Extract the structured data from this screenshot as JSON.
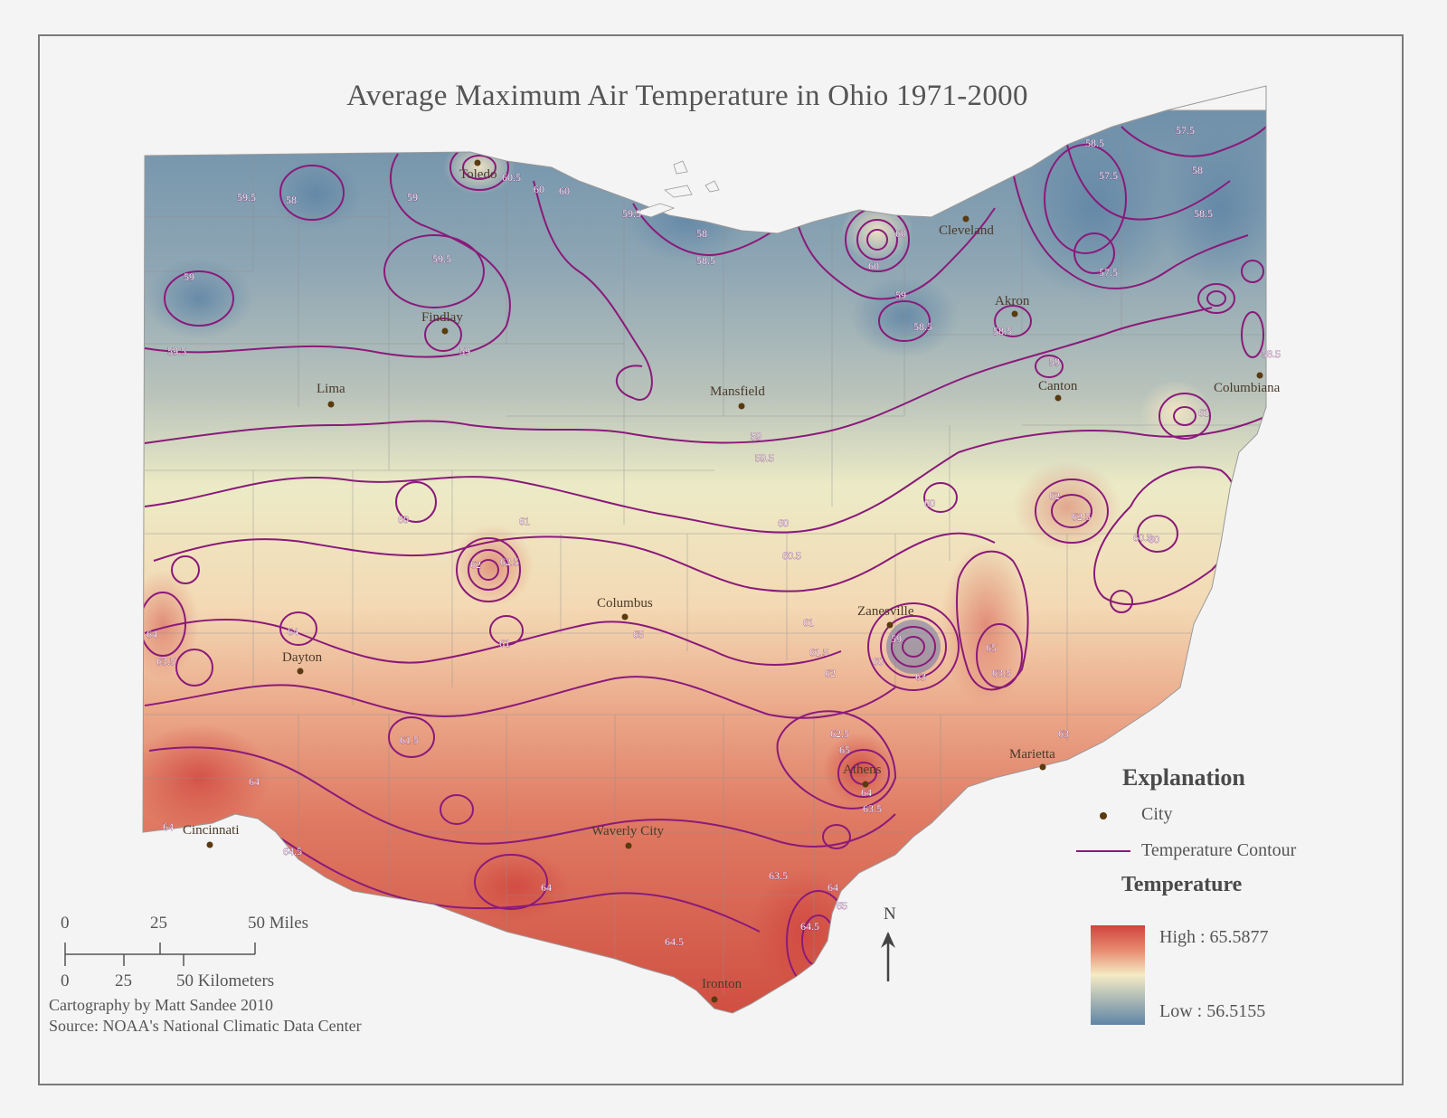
{
  "title": "Average Maximum Air Temperature in Ohio 1971-2000",
  "cities": [
    {
      "name": "Toledo"
    },
    {
      "name": "Cleveland"
    },
    {
      "name": "Akron"
    },
    {
      "name": "Findlay"
    },
    {
      "name": "Lima"
    },
    {
      "name": "Mansfield"
    },
    {
      "name": "Canton"
    },
    {
      "name": "Columbiana"
    },
    {
      "name": "Columbus"
    },
    {
      "name": "Zanesville"
    },
    {
      "name": "Dayton"
    },
    {
      "name": "Athens"
    },
    {
      "name": "Marietta"
    },
    {
      "name": "Cincinnati"
    },
    {
      "name": "Waverly City"
    },
    {
      "name": "Ironton"
    }
  ],
  "contour_labels": [
    "57.5",
    "58",
    "58.5",
    "59",
    "59.5",
    "60",
    "60.5",
    "61",
    "61.5",
    "62",
    "62.5",
    "63",
    "63.5",
    "64",
    "64.5",
    "65"
  ],
  "legend": {
    "title": "Explanation",
    "city_label": "City",
    "contour_label": "Temperature Contour",
    "temperature_title": "Temperature",
    "high": "High : 65.5877",
    "low": "Low : 56.5155",
    "colors": {
      "high": "#d0453e",
      "mid": "#f4ebc4",
      "low": "#5f85a6",
      "contour": "#8a1a7a",
      "city": "#5a3a10"
    }
  },
  "scale": {
    "miles_ticks": [
      "0",
      "25",
      "50 Miles"
    ],
    "km_ticks": [
      "0",
      "25",
      "50 Kilometers"
    ]
  },
  "north_label": "N",
  "credit": {
    "line1": "Cartography by Matt Sandee 2010",
    "line2": "Source: NOAA's National Climatic Data Center"
  }
}
